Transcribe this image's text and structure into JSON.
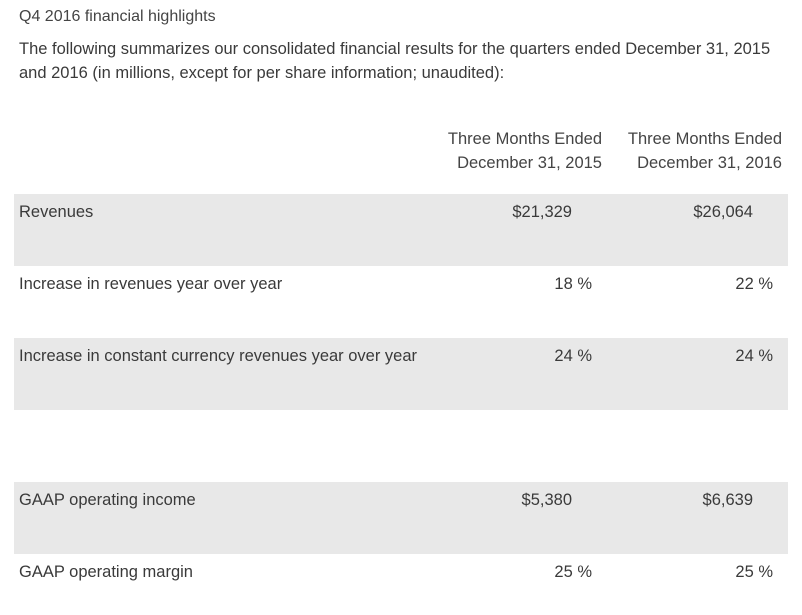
{
  "title": "Q4 2016 financial highlights",
  "intro": "The following summarizes our consolidated financial results for the quarters ended December 31, 2015 and 2016 (in millions, except for per share information; unaudited):",
  "columns": [
    {
      "line1": "Three Months Ended",
      "line2": "December 31, 2015"
    },
    {
      "line1": "Three Months Ended",
      "line2": "December 31, 2016"
    }
  ],
  "rows": [
    {
      "label": "Revenues",
      "v1": "$21,329",
      "v2": "$26,064"
    },
    {
      "label": "Increase in revenues year over year",
      "v1": "18 %",
      "v2": "22 %"
    },
    {
      "label": "Increase in constant currency revenues year over year",
      "v1": "24 %",
      "v2": "24 %"
    },
    {
      "label": "",
      "v1": "",
      "v2": ""
    },
    {
      "label": "GAAP operating income",
      "v1": "$5,380",
      "v2": "$6,639"
    },
    {
      "label": "GAAP operating margin",
      "v1": "25 %",
      "v2": "25 %"
    }
  ],
  "colors": {
    "row_shade": "#e8e8e8",
    "text": "#3a3a3a"
  }
}
